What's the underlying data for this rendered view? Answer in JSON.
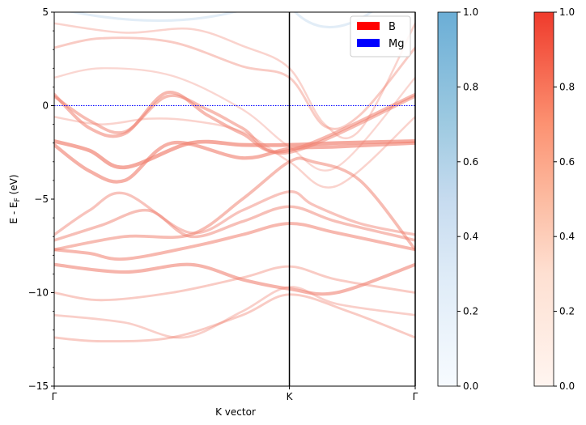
{
  "chart_data": {
    "type": "line",
    "subtype": "band-structure",
    "title": "",
    "xlabel": "K vector",
    "ylabel": "E - E_F (eV)",
    "ylabel_main": "E - E",
    "ylabel_sub": "F",
    "ylabel_tail": " (eV)",
    "ylim": [
      -15,
      5
    ],
    "y_ticks": [
      5,
      0,
      -5,
      -10,
      -15
    ],
    "y_tick_labels": [
      "5",
      "0",
      "−5",
      "−10",
      "−15"
    ],
    "x_ticks": [
      0,
      1.0,
      1.535
    ],
    "x_tick_labels": [
      "Γ",
      "K",
      "Γ"
    ],
    "x_range": [
      0,
      1.535
    ],
    "fermi_level": 0,
    "legend": {
      "position": "top-right",
      "entries": [
        {
          "label": "B",
          "color": "#ff0000"
        },
        {
          "label": "Mg",
          "color": "#0000ff"
        }
      ]
    },
    "colorbars": [
      {
        "name": "Blues",
        "ticks": [
          "0.0",
          "0.2",
          "0.4",
          "0.6",
          "0.8",
          "1.0"
        ],
        "range": [
          0,
          1
        ]
      },
      {
        "name": "Reds",
        "ticks": [
          "0.0",
          "0.2",
          "0.4",
          "0.6",
          "0.8",
          "1.0"
        ],
        "range": [
          0,
          1
        ]
      }
    ],
    "series": [
      {
        "x": [
          0,
          0.2,
          0.5,
          0.8,
          1.0,
          1.25,
          1.535
        ],
        "y": [
          -12.4,
          -12.6,
          -12.4,
          -11.2,
          -10.1,
          -11.0,
          -12.4
        ],
        "weight": 0.35
      },
      {
        "x": [
          0,
          0.3,
          0.55,
          0.8,
          1.0,
          1.2,
          1.535
        ],
        "y": [
          -11.2,
          -11.6,
          -12.4,
          -11.0,
          -9.7,
          -10.6,
          -11.2
        ],
        "weight": 0.3
      },
      {
        "x": [
          0,
          0.2,
          0.5,
          0.8,
          1.0,
          1.2,
          1.535
        ],
        "y": [
          -10.0,
          -10.4,
          -10.0,
          -9.2,
          -8.6,
          -9.3,
          -10.0
        ],
        "weight": 0.35
      },
      {
        "x": [
          0,
          0.3,
          0.58,
          0.8,
          1.0,
          1.2,
          1.535
        ],
        "y": [
          -8.5,
          -8.9,
          -8.5,
          -9.3,
          -9.8,
          -10.0,
          -8.5
        ],
        "weight": 0.65
      },
      {
        "x": [
          0,
          0.15,
          0.3,
          0.6,
          0.8,
          1.0,
          1.2,
          1.535
        ],
        "y": [
          -7.7,
          -7.9,
          -8.2,
          -7.5,
          -6.9,
          -6.3,
          -6.8,
          -7.7
        ],
        "weight": 0.6
      },
      {
        "x": [
          0,
          0.2,
          0.4,
          0.58,
          0.8,
          1.0,
          1.2,
          1.535
        ],
        "y": [
          -7.2,
          -6.4,
          -5.6,
          -7.0,
          -6.2,
          -5.4,
          -6.2,
          -7.2
        ],
        "weight": 0.5
      },
      {
        "x": [
          0,
          0.15,
          0.3,
          0.58,
          0.8,
          1.0,
          1.1,
          1.3,
          1.535
        ],
        "y": [
          -6.9,
          -5.6,
          -4.7,
          -6.8,
          -5.6,
          -4.6,
          -5.3,
          -6.3,
          -6.9
        ],
        "weight": 0.45
      },
      {
        "x": [
          0,
          0.15,
          0.3,
          0.5,
          0.8,
          1.0,
          1.2,
          1.535
        ],
        "y": [
          -2.1,
          -3.5,
          -4.0,
          -2.0,
          -2.8,
          -2.3,
          -2.2,
          -2.0
        ],
        "weight": 0.7
      },
      {
        "x": [
          0,
          0.15,
          0.3,
          0.58,
          0.8,
          1.0,
          1.2,
          1.535
        ],
        "y": [
          -1.9,
          -2.4,
          -3.3,
          -2.0,
          -2.1,
          -2.1,
          -2.0,
          -1.9
        ],
        "weight": 0.8
      },
      {
        "x": [
          0,
          0.3,
          0.58,
          0.8,
          1.0,
          1.1,
          1.3,
          1.535
        ],
        "y": [
          -7.7,
          -7.0,
          -6.9,
          -5.0,
          -3.0,
          -3.0,
          -4.0,
          -7.7
        ],
        "weight": 0.55
      },
      {
        "x": [
          0,
          0.15,
          0.3,
          0.48,
          0.65,
          0.8,
          1.0,
          1.535
        ],
        "y": [
          0.6,
          -1.2,
          -1.5,
          0.7,
          -0.5,
          -1.5,
          -2.4,
          0.6
        ],
        "weight": 0.6
      },
      {
        "x": [
          0,
          0.15,
          0.3,
          0.48,
          0.65,
          0.8,
          1.0,
          1.535
        ],
        "y": [
          0.5,
          -0.8,
          -1.4,
          0.5,
          -0.2,
          -1.2,
          -2.5,
          0.5
        ],
        "weight": 0.55
      },
      {
        "x": [
          0,
          0.2,
          0.5,
          0.8,
          1.0,
          1.15,
          1.3,
          1.535
        ],
        "y": [
          3.1,
          3.6,
          3.4,
          2.1,
          1.5,
          -1.1,
          -0.5,
          3.1
        ],
        "weight": 0.35
      },
      {
        "x": [
          0,
          0.3,
          0.58,
          0.8,
          1.0,
          1.15,
          1.3,
          1.535
        ],
        "y": [
          4.4,
          3.9,
          4.1,
          3.2,
          2.0,
          -1.0,
          -1.3,
          4.4
        ],
        "weight": 0.25
      },
      {
        "x": [
          0,
          0.2,
          0.5,
          0.8,
          1.0,
          1.2,
          1.535
        ],
        "y": [
          1.5,
          2.0,
          1.6,
          -0.2,
          -2.2,
          -3.3,
          1.5
        ],
        "weight": 0.2
      },
      {
        "x": [
          0,
          0.2,
          0.4,
          0.58,
          0.8,
          1.0,
          1.2,
          1.535
        ],
        "y": [
          -0.6,
          -1.0,
          -0.7,
          -0.8,
          -1.4,
          -3.0,
          -4.3,
          -0.6
        ],
        "weight": 0.25
      }
    ]
  }
}
